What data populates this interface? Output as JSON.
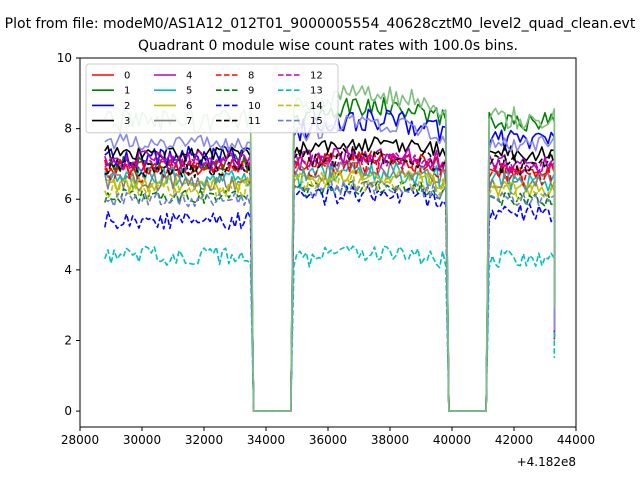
{
  "figure": {
    "suptitle": "Plot from file: modeM0/AS1A12_012T01_9000005554_40628cztM0_level2_quad_clean.evt"
  },
  "chart_data": {
    "type": "line",
    "title": "Quadrant 0 module wise count rates with 100.0s bins.",
    "xlabel": "",
    "ylabel": "",
    "x_offset_label": "+4.182e8",
    "xlim": [
      28000,
      44000
    ],
    "ylim": [
      -0.45,
      10
    ],
    "x_ticks": [
      28000,
      30000,
      32000,
      34000,
      36000,
      38000,
      40000,
      42000,
      44000
    ],
    "y_ticks": [
      0,
      2,
      4,
      6,
      8,
      10
    ],
    "legend": {
      "location": "top-left",
      "columns": 4
    },
    "segments": [
      {
        "start": 28800,
        "end": 33500
      },
      {
        "start": 34900,
        "end": 39800
      },
      {
        "start": 41200,
        "end": 43300
      }
    ],
    "gaps": [
      {
        "drop_start": 33500,
        "zero_start": 33600,
        "zero_end": 34800,
        "rise_end": 34900
      },
      {
        "drop_start": 39800,
        "zero_start": 39900,
        "zero_end": 41100,
        "rise_end": 41200
      }
    ],
    "series": [
      {
        "name": "0",
        "color": "#ff0000",
        "dash": "solid",
        "levels": [
          6.9,
          7.0,
          6.8
        ]
      },
      {
        "name": "1",
        "color": "#008000",
        "dash": "solid",
        "levels": [
          7.0,
          8.3,
          8.2
        ]
      },
      {
        "name": "2",
        "color": "#0000ff",
        "dash": "solid",
        "levels": [
          7.2,
          7.9,
          7.7
        ]
      },
      {
        "name": "3",
        "color": "#000000",
        "dash": "solid",
        "levels": [
          7.3,
          7.4,
          7.3
        ]
      },
      {
        "name": "4",
        "color": "#bf00bf",
        "dash": "solid",
        "levels": [
          7.1,
          7.1,
          7.0
        ]
      },
      {
        "name": "5",
        "color": "#00bfbf",
        "dash": "solid",
        "levels": [
          6.6,
          6.6,
          6.5
        ]
      },
      {
        "name": "6",
        "color": "#bfbf00",
        "dash": "solid",
        "levels": [
          6.4,
          6.5,
          6.3
        ]
      },
      {
        "name": "7",
        "color": "#808080",
        "dash": "solid",
        "levels": [
          6.5,
          6.7,
          6.5
        ]
      },
      {
        "name": "8",
        "color": "#ff0000",
        "dash": "dashed",
        "levels": [
          6.8,
          6.9,
          6.7
        ]
      },
      {
        "name": "9",
        "color": "#008000",
        "dash": "dashed",
        "levels": [
          6.1,
          6.2,
          6.0
        ]
      },
      {
        "name": "10",
        "color": "#0000ff",
        "dash": "dashed",
        "levels": [
          5.4,
          6.0,
          5.6
        ]
      },
      {
        "name": "11",
        "color": "#000000",
        "dash": "dashed",
        "levels": [
          6.9,
          7.1,
          7.0
        ]
      },
      {
        "name": "12",
        "color": "#bf00bf",
        "dash": "dashed",
        "levels": [
          7.0,
          7.0,
          6.9
        ]
      },
      {
        "name": "13",
        "color": "#00bfbf",
        "dash": "dashed",
        "levels": [
          4.4,
          4.3,
          4.3
        ]
      },
      {
        "name": "14",
        "color": "#bfbf00",
        "dash": "dashed",
        "levels": [
          6.3,
          6.4,
          6.2
        ]
      },
      {
        "name": "15",
        "color": "#6b7bd6",
        "dash": "dashed",
        "levels": [
          6.0,
          6.2,
          6.0
        ]
      },
      {
        "name": "",
        "color": "#8888ee",
        "dash": "solid",
        "levels": [
          7.6,
          7.8,
          7.6
        ]
      },
      {
        "name": "",
        "color": "#7fbf7f",
        "dash": "solid",
        "levels": [
          8.2,
          8.6,
          8.3
        ]
      }
    ]
  }
}
